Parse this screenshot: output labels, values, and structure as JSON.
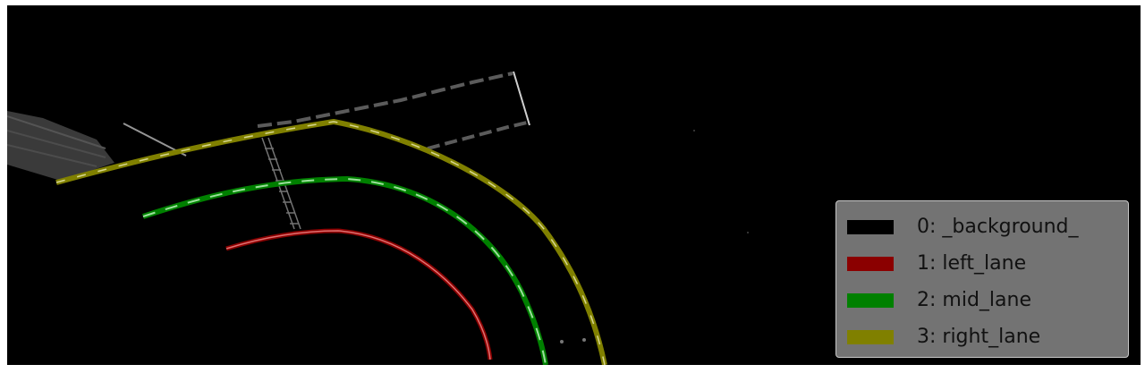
{
  "legend": {
    "items": [
      {
        "label": "0: _background_",
        "color": "#000000"
      },
      {
        "label": "1: left_lane",
        "color": "#8b0000"
      },
      {
        "label": "2: mid_lane",
        "color": "#008000"
      },
      {
        "label": "3: right_lane",
        "color": "#808000"
      }
    ]
  },
  "colors": {
    "background": "#000000",
    "left_lane": "#8b0000",
    "left_lane_highlight": "#e07070",
    "mid_lane": "#008000",
    "mid_lane_highlight": "#9be09b",
    "right_lane": "#808000",
    "right_lane_highlight": "#d8d890",
    "artifact_gray": "#8a8a8a"
  }
}
